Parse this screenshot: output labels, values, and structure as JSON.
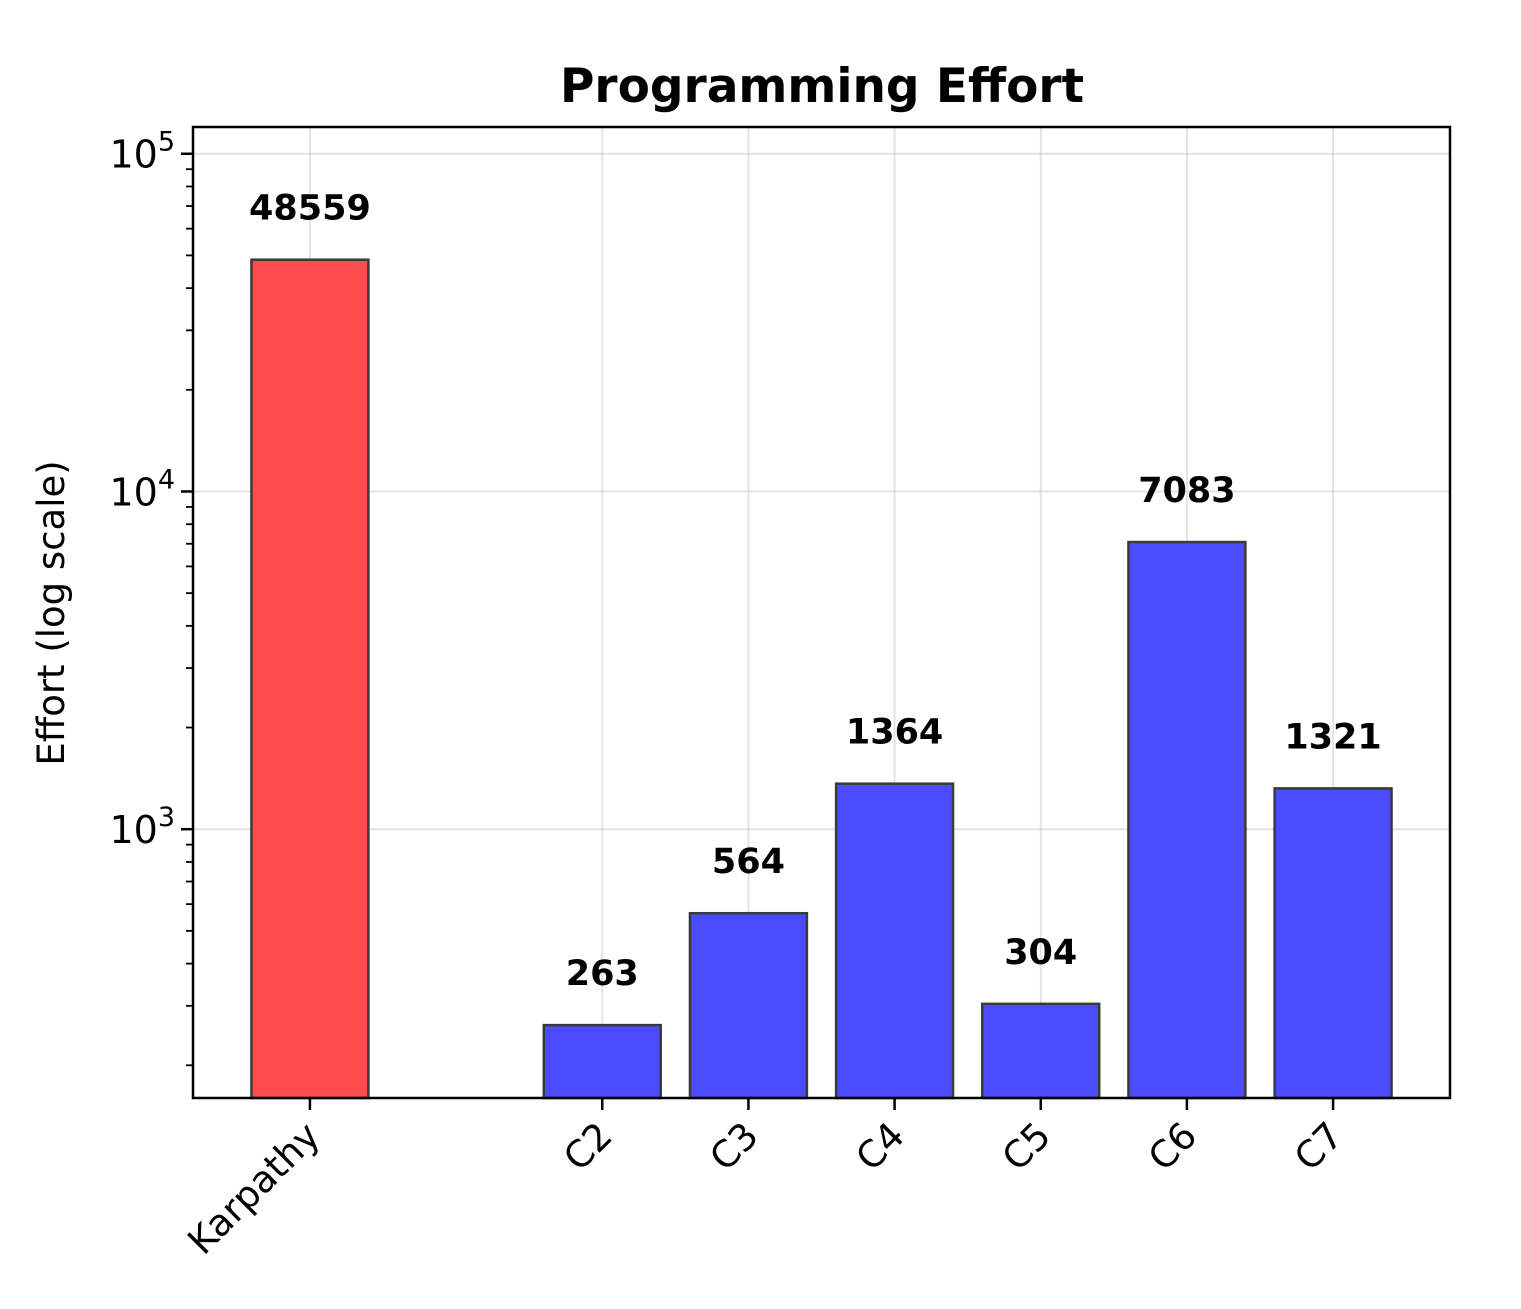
{
  "chart_data": {
    "type": "bar",
    "title": "Programming Effort",
    "xlabel": "",
    "ylabel": "Effort (log scale)",
    "yscale": "log",
    "ylim": [
      160,
      120000
    ],
    "yticks": [
      {
        "value": 1000,
        "base": "10",
        "exp": "3"
      },
      {
        "value": 10000,
        "base": "10",
        "exp": "4"
      },
      {
        "value": 100000,
        "base": "10",
        "exp": "5"
      }
    ],
    "grid": true,
    "categories": [
      "Karpathy",
      "C2",
      "C3",
      "C4",
      "C5",
      "C6",
      "C7"
    ],
    "x": [
      0,
      2,
      3,
      4,
      5,
      6,
      7
    ],
    "xlim": [
      -0.8,
      7.8
    ],
    "values": [
      48559,
      263,
      564,
      1364,
      304,
      7083,
      1321
    ],
    "data_labels": [
      "48559",
      "263",
      "564",
      "1364",
      "304",
      "7083",
      "1321"
    ],
    "colors": [
      "#ff4c4c",
      "#4c4cff",
      "#4c4cff",
      "#4c4cff",
      "#4c4cff",
      "#4c4cff",
      "#4c4cff"
    ],
    "edge_color": "#3a3a3a"
  }
}
